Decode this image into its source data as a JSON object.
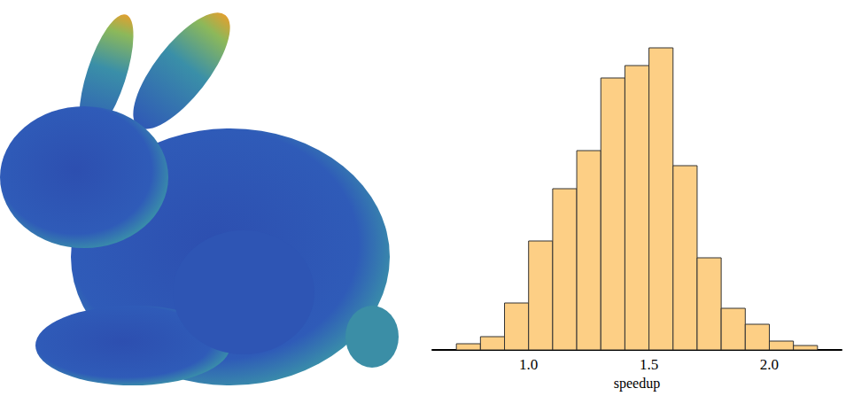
{
  "chart_data": {
    "type": "histogram",
    "x_label": "speedup",
    "bins": [
      0.7,
      0.8,
      0.9,
      1.0,
      1.1,
      1.2,
      1.3,
      1.4,
      1.5,
      1.6,
      1.7,
      1.8,
      1.9,
      2.0,
      2.1,
      2.2
    ],
    "values": [
      7,
      15,
      53,
      123,
      182,
      225,
      307,
      321,
      341,
      208,
      104,
      47,
      29,
      10,
      5
    ],
    "color": "#fdcf85",
    "xlim": [
      0.6,
      2.3
    ],
    "xticks": [
      {
        "value": 1.0,
        "label": "1.0"
      },
      {
        "value": 1.5,
        "label": "1.5"
      },
      {
        "value": 2.0,
        "label": "2.0"
      }
    ],
    "ylim": [
      0,
      350
    ],
    "grid": false,
    "tick_labels": "x"
  }
}
